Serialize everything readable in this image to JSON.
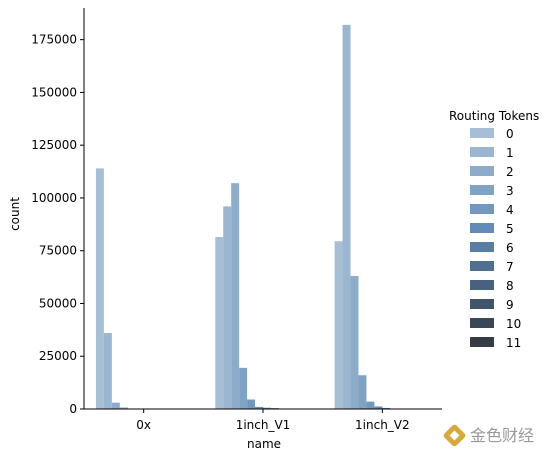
{
  "chart_data": {
    "type": "bar",
    "categories": [
      "0x",
      "1inch_V1",
      "1inch_V2"
    ],
    "xlabel": "name",
    "ylabel": "count",
    "ylim": [
      0,
      190000
    ],
    "yticks": [
      0,
      25000,
      50000,
      75000,
      100000,
      125000,
      150000,
      175000
    ],
    "grid": false,
    "legend": {
      "title": "Routing Tokens",
      "placement": "right"
    },
    "series": [
      {
        "name": "0",
        "color": "#a6bfd6",
        "values": [
          114000,
          81500,
          79500
        ]
      },
      {
        "name": "1",
        "color": "#9ab6d1",
        "values": [
          36000,
          96000,
          182000
        ]
      },
      {
        "name": "2",
        "color": "#8dacca",
        "values": [
          3000,
          107000,
          63000
        ]
      },
      {
        "name": "3",
        "color": "#80a2c4",
        "values": [
          700,
          19500,
          16000
        ]
      },
      {
        "name": "4",
        "color": "#7298be",
        "values": [
          200,
          4500,
          3500
        ]
      },
      {
        "name": "5",
        "color": "#628cb6",
        "values": [
          100,
          1000,
          1200
        ]
      },
      {
        "name": "6",
        "color": "#587ea6",
        "values": [
          50,
          600,
          500
        ]
      },
      {
        "name": "7",
        "color": "#4f6f92",
        "values": [
          20,
          400,
          200
        ]
      },
      {
        "name": "8",
        "color": "#47617e",
        "values": [
          10,
          200,
          100
        ]
      },
      {
        "name": "9",
        "color": "#40536a",
        "values": [
          5,
          100,
          50
        ]
      },
      {
        "name": "10",
        "color": "#3a4757",
        "values": [
          2,
          50,
          20
        ]
      },
      {
        "name": "11",
        "color": "#353c45",
        "values": [
          1,
          20,
          10
        ]
      }
    ]
  },
  "watermark": {
    "text": "金色财经",
    "logo_color": "#d8a83a"
  }
}
